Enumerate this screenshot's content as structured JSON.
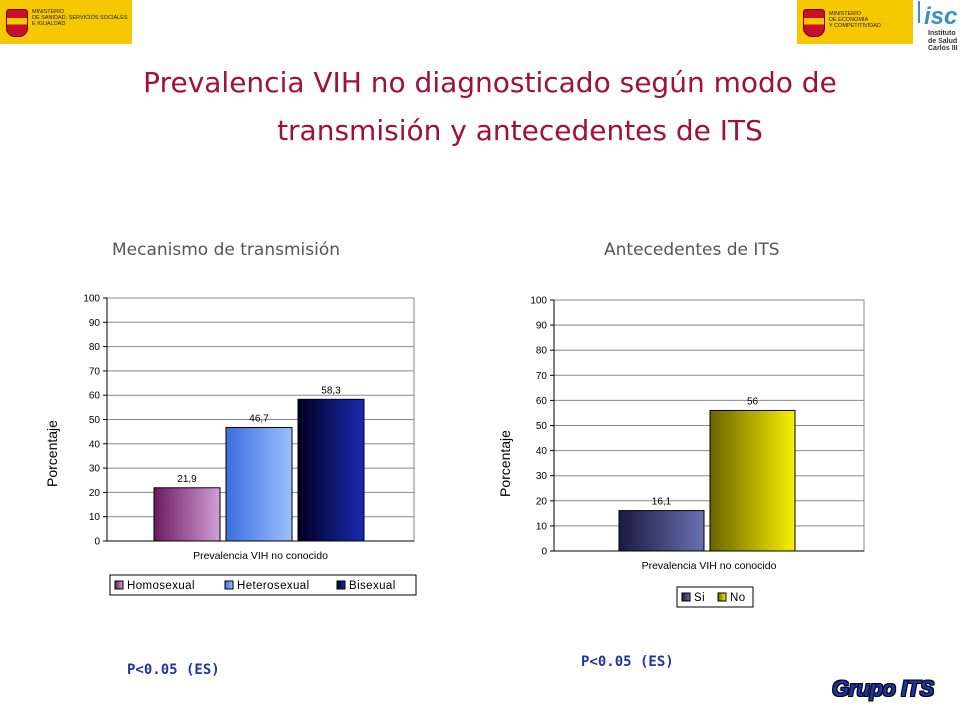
{
  "logos": {
    "left_text": "MINISTERIO\nDE SANIDAD, SERVICIOS SOCIALES\nE IGUALDAD",
    "mid_text": "MINISTERIO\nDE ECONOMÍA\nY COMPETITIVIDAD",
    "isc_text": "Instituto\nde Salud\nCarlos III"
  },
  "title_line1": "Prevalencia VIH no diagnosticado según modo de",
  "title_line2": "transmisión y antecedentes de ITS",
  "footer_logo": "Grupo ITS",
  "chart_data": [
    {
      "type": "bar",
      "heading": "Mecanismo de transmisión",
      "categories": [
        "Prevalencia VIH no conocido"
      ],
      "series": [
        {
          "name": "Homosexual",
          "values": [
            21.9
          ],
          "label": "21,9",
          "color_light": "#d2a0d8",
          "color_dark": "#6a1a60"
        },
        {
          "name": "Heterosexual",
          "values": [
            46.7
          ],
          "label": "46,7",
          "color_light": "#9cc0ff",
          "color_dark": "#3a6ee0"
        },
        {
          "name": "Bisexual",
          "values": [
            58.3
          ],
          "label": "58,3",
          "color_light": "#1a2ab0",
          "color_dark": "#000020"
        }
      ],
      "legend_labels": [
        "Homosexual",
        "Heterosexual",
        "Bisexual"
      ],
      "ylabel": "Porcentaje",
      "ylim": [
        0,
        100
      ],
      "yticks": [
        "0",
        "10",
        "20",
        "30",
        "40",
        "50",
        "60",
        "70",
        "80",
        "90",
        "100"
      ],
      "grid": true,
      "legend": "bottom",
      "pvalue": "P<0.05 (ES)"
    },
    {
      "type": "bar",
      "heading": "Antecedentes de ITS",
      "categories": [
        "Prevalencia VIH no conocido"
      ],
      "series": [
        {
          "name": "Si",
          "values": [
            16.1
          ],
          "label": "16,1",
          "color_light": "#6a70b0",
          "color_dark": "#1a1a40"
        },
        {
          "name": "No",
          "values": [
            56
          ],
          "label": "56",
          "color_light": "#f8f000",
          "color_dark": "#6a6400"
        }
      ],
      "legend_labels": [
        "Si",
        "No"
      ],
      "ylabel": "Porcentaje",
      "ylim": [
        0,
        100
      ],
      "yticks": [
        "0",
        "10",
        "20",
        "30",
        "40",
        "50",
        "60",
        "70",
        "80",
        "90",
        "100"
      ],
      "grid": true,
      "legend": "bottom",
      "pvalue": "P<0.05 (ES)"
    }
  ]
}
